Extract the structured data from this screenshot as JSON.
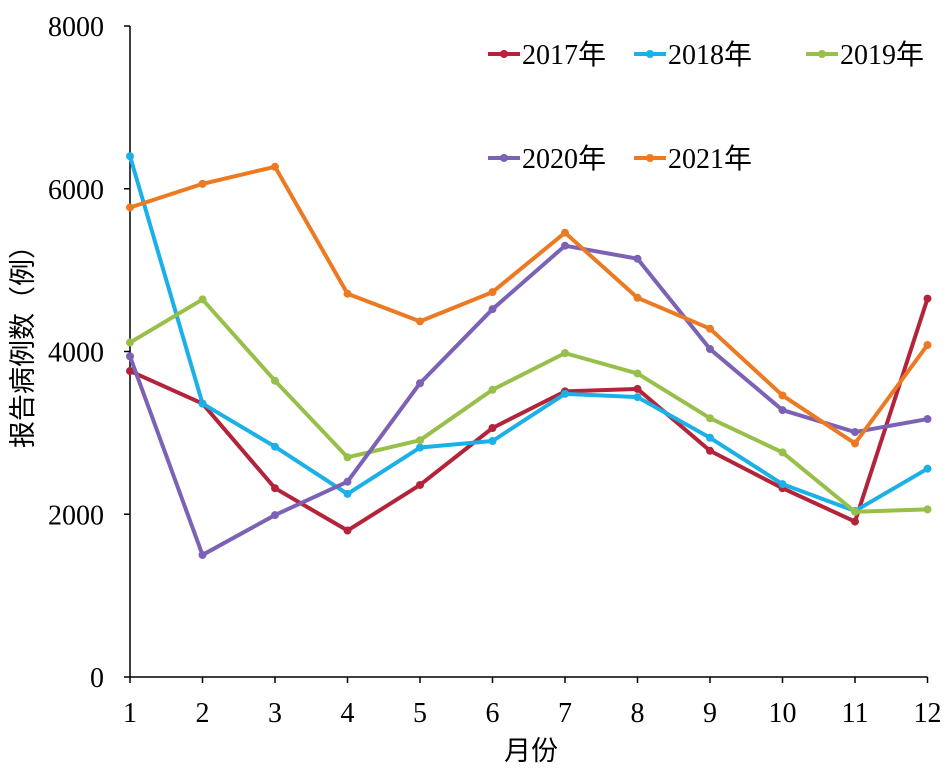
{
  "chart_data": {
    "type": "line",
    "title": "",
    "xlabel": "月份",
    "ylabel": "报告病例数（例）",
    "categories": [
      "1",
      "2",
      "3",
      "4",
      "5",
      "6",
      "7",
      "8",
      "9",
      "10",
      "11",
      "12"
    ],
    "ylim": [
      0,
      8000
    ],
    "yticks": [
      "0",
      "2000",
      "4000",
      "6000",
      "8000"
    ],
    "grid": false,
    "legend_position": "top-right",
    "series": [
      {
        "name": "2017年",
        "color": "#b3243a",
        "values": [
          3760,
          3360,
          2320,
          1800,
          2360,
          3060,
          3510,
          3540,
          2780,
          2320,
          1910,
          4650
        ]
      },
      {
        "name": "2018年",
        "color": "#1bb0e8",
        "values": [
          6400,
          3360,
          2830,
          2250,
          2820,
          2900,
          3480,
          3440,
          2940,
          2370,
          2040,
          2560
        ]
      },
      {
        "name": "2019年",
        "color": "#97bf4a",
        "values": [
          4110,
          4640,
          3640,
          2700,
          2910,
          3530,
          3980,
          3730,
          3180,
          2760,
          2030,
          2060
        ]
      },
      {
        "name": "2020年",
        "color": "#7b62b5",
        "values": [
          3940,
          1500,
          1990,
          2400,
          3610,
          4520,
          5300,
          5140,
          4030,
          3280,
          3010,
          3170
        ]
      },
      {
        "name": "2021年",
        "color": "#ec7a22",
        "values": [
          5770,
          6060,
          6270,
          4710,
          4370,
          4730,
          5460,
          4660,
          4280,
          3460,
          2870,
          4080
        ]
      }
    ]
  }
}
